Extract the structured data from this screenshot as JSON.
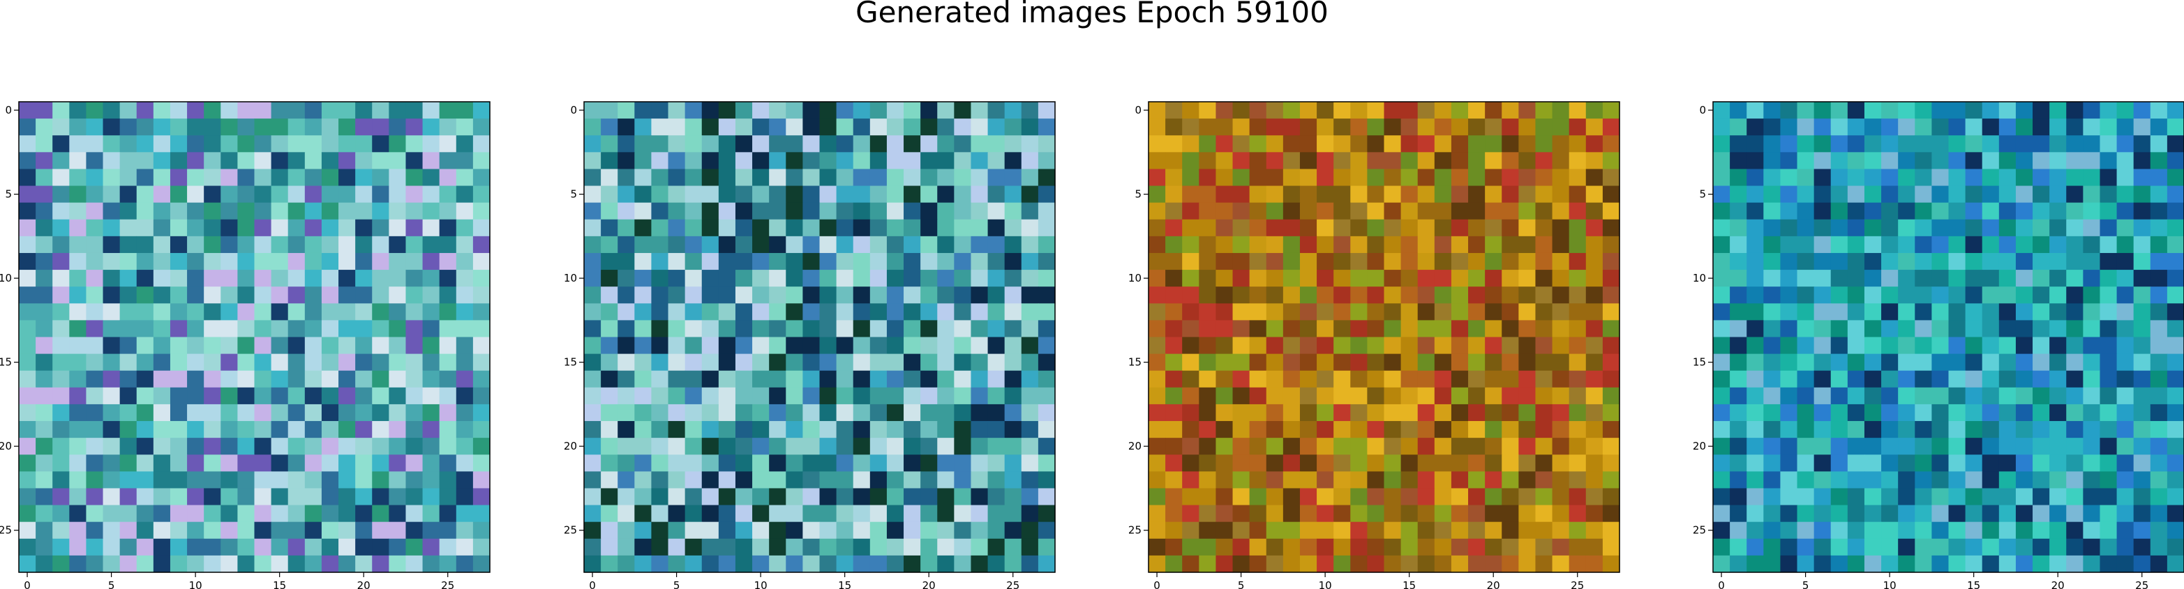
{
  "figure": {
    "title": "Generated images Epoch 59100"
  },
  "chart_data": [
    {
      "type": "heatmap",
      "name": "image-1",
      "rows": 28,
      "cols": 28,
      "xlim": [
        -0.5,
        27.5
      ],
      "ylim": [
        27.5,
        -0.5
      ],
      "xticks": [
        0,
        5,
        10,
        15,
        20,
        25
      ],
      "yticks": [
        0,
        5,
        10,
        15,
        20,
        25
      ],
      "palette": [
        "#48a9b0",
        "#7ec9c9",
        "#3a8fa0",
        "#9fd8d8",
        "#2d6e9a",
        "#5cc2b9",
        "#b0d9e8",
        "#6b59b6",
        "#1f7f8a",
        "#8fe0d0",
        "#c6b3e8",
        "#3cb6c8",
        "#2a9a7a",
        "#d6e6ef",
        "#143d6b"
      ],
      "seed": 11
    },
    {
      "type": "heatmap",
      "name": "image-2",
      "rows": 28,
      "cols": 28,
      "xlim": [
        -0.5,
        27.5
      ],
      "ylim": [
        27.5,
        -0.5
      ],
      "xticks": [
        0,
        5,
        10,
        15,
        20,
        25
      ],
      "yticks": [
        0,
        5,
        10,
        15,
        20,
        25
      ],
      "palette": [
        "#3a9c9a",
        "#6dbfbf",
        "#2c7c8c",
        "#8fd0cc",
        "#1d5f88",
        "#50b7a9",
        "#a6d6e0",
        "#3b7fb8",
        "#14707a",
        "#7fd8c4",
        "#b9cdee",
        "#37a9c4",
        "#0f3d2e",
        "#cfe4ea",
        "#0b2a4a"
      ],
      "seed": 23
    },
    {
      "type": "heatmap",
      "name": "image-3",
      "rows": 28,
      "cols": 28,
      "xlim": [
        -0.5,
        27.5
      ],
      "ylim": [
        27.5,
        -0.5
      ],
      "xticks": [
        0,
        5,
        10,
        15,
        20,
        25
      ],
      "yticks": [
        0,
        5,
        10,
        15,
        20,
        25
      ],
      "palette": [
        "#b8860b",
        "#8b4513",
        "#a0522d",
        "#c99a12",
        "#6b8e23",
        "#9a6a10",
        "#c0392b",
        "#d4a017",
        "#7a5c10",
        "#8fa31e",
        "#b5651d",
        "#e6b422",
        "#5e3b0e",
        "#a83220",
        "#9b7b2a"
      ],
      "seed": 37
    },
    {
      "type": "heatmap",
      "name": "image-4",
      "rows": 28,
      "cols": 28,
      "xlim": [
        -0.5,
        27.5
      ],
      "ylim": [
        27.5,
        -0.5
      ],
      "xticks": [
        0,
        5,
        10,
        15,
        20,
        25
      ],
      "yticks": [
        0,
        5,
        10,
        15,
        20,
        25
      ],
      "palette": [
        "#1e9aa8",
        "#0f7fb0",
        "#2bb5c2",
        "#137a8a",
        "#40c0b0",
        "#1560a8",
        "#5fd0d8",
        "#0a8f7c",
        "#2a7fd0",
        "#19b3a3",
        "#7ab8d6",
        "#0b4c7a",
        "#25a0c8",
        "#0d2f5c",
        "#3dd0c0"
      ],
      "seed": 51
    }
  ]
}
